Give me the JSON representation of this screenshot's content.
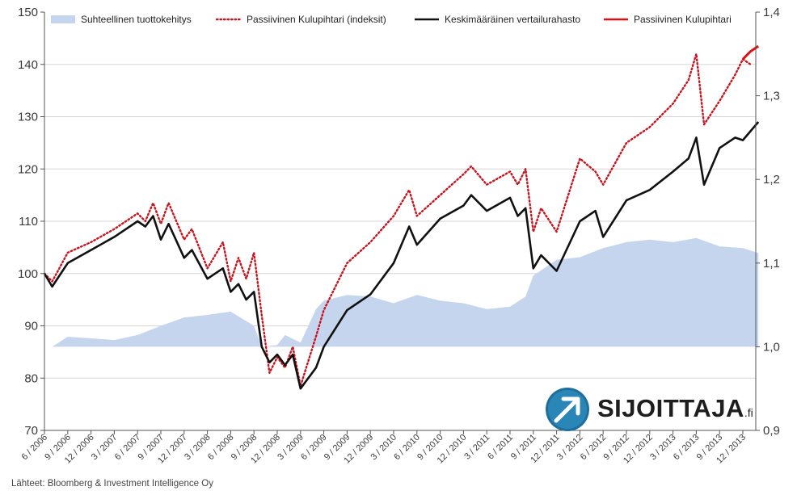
{
  "chart_data": {
    "type": "line",
    "title": "",
    "xlabel": "",
    "ylabel": "",
    "ylim": [
      70,
      150
    ],
    "y2lim": [
      0.9,
      1.4
    ],
    "y_ticks": [
      "70",
      "80",
      "90",
      "100",
      "110",
      "120",
      "130",
      "140",
      "150"
    ],
    "y2_ticks": [
      "0,9",
      "1,0",
      "1,1",
      "1,2",
      "1,3",
      "1,4"
    ],
    "x_ticks": [
      "6 / 2006",
      "9 / 2006",
      "12 / 2006",
      "3 / 2007",
      "6 / 2007",
      "9 / 2007",
      "12 / 2007",
      "3 / 2008",
      "6 / 2008",
      "9 / 2008",
      "12 / 2008",
      "3 / 2009",
      "6 / 2009",
      "9 / 2009",
      "12 / 2009",
      "3 / 2010",
      "6 / 2010",
      "9 / 2010",
      "12 / 2010",
      "3 / 2011",
      "6 / 2011",
      "9 / 2011",
      "12 / 2011",
      "3 / 2012",
      "6 / 2012",
      "9 / 2012",
      "12 / 2012",
      "3 / 2013",
      "6 / 2013",
      "9 / 2013",
      "12 / 2013"
    ],
    "legend_position": "top",
    "grid": true,
    "series": [
      {
        "name": "Suhteellinen tuottokehitys",
        "kind": "area",
        "axis": "right",
        "color": "#c5d5ee",
        "x": [
          "2006-06",
          "2006-07",
          "2006-09",
          "2006-12",
          "2007-03",
          "2007-06",
          "2007-09",
          "2007-12",
          "2008-03",
          "2008-06",
          "2008-09",
          "2008-10",
          "2008-12",
          "2009-01",
          "2009-03",
          "2009-05",
          "2009-06",
          "2009-09",
          "2009-12",
          "2010-03",
          "2010-06",
          "2010-09",
          "2010-12",
          "2011-03",
          "2011-06",
          "2011-08",
          "2011-09",
          "2011-12",
          "2012-03",
          "2012-06",
          "2012-09",
          "2012-12",
          "2013-03",
          "2013-06",
          "2013-09",
          "2013-12",
          "2014-02"
        ],
        "values": [
          1.0,
          1.0,
          1.012,
          1.01,
          1.008,
          1.014,
          1.025,
          1.035,
          1.038,
          1.042,
          1.025,
          1.0,
          1.002,
          1.014,
          1.005,
          1.045,
          1.055,
          1.062,
          1.06,
          1.052,
          1.062,
          1.055,
          1.052,
          1.045,
          1.048,
          1.06,
          1.085,
          1.104,
          1.107,
          1.118,
          1.125,
          1.128,
          1.125,
          1.13,
          1.12,
          1.118,
          1.112
        ]
      },
      {
        "name": "Passiivinen Kulupihtari (indeksit)",
        "kind": "dotted",
        "axis": "left",
        "color": "#c8141e",
        "x": [
          "2006-06",
          "2006-07",
          "2006-09",
          "2006-12",
          "2007-03",
          "2007-06",
          "2007-07",
          "2007-08",
          "2007-09",
          "2007-10",
          "2007-12",
          "2008-01",
          "2008-03",
          "2008-05",
          "2008-06",
          "2008-07",
          "2008-08",
          "2008-09",
          "2008-10",
          "2008-11",
          "2008-12",
          "2009-01",
          "2009-02",
          "2009-03",
          "2009-05",
          "2009-06",
          "2009-09",
          "2009-12",
          "2010-03",
          "2010-05",
          "2010-06",
          "2010-09",
          "2010-12",
          "2011-01",
          "2011-03",
          "2011-06",
          "2011-07",
          "2011-08",
          "2011-09",
          "2011-10",
          "2011-12",
          "2012-03",
          "2012-05",
          "2012-06",
          "2012-09",
          "2012-12",
          "2013-03",
          "2013-05",
          "2013-06",
          "2013-07",
          "2013-09",
          "2013-11",
          "2013-12",
          "2014-01"
        ],
        "values": [
          100,
          98.5,
          104,
          106,
          108.5,
          111.5,
          110,
          113.5,
          109.5,
          113.5,
          106.5,
          108.5,
          101,
          106,
          98.5,
          103,
          99,
          104,
          92,
          81,
          84,
          82,
          86,
          78.5,
          88,
          93,
          102,
          106,
          111,
          116,
          111,
          115,
          119,
          120.5,
          117,
          119.5,
          117,
          120,
          108,
          112.5,
          108,
          122,
          119.5,
          117,
          125,
          128,
          132.5,
          137,
          142,
          128.5,
          133,
          138,
          141,
          140
        ]
      },
      {
        "name": "Keskimääräinen vertailurahasto",
        "kind": "solid",
        "axis": "left",
        "color": "#111111",
        "x": [
          "2006-06",
          "2006-07",
          "2006-09",
          "2006-12",
          "2007-03",
          "2007-06",
          "2007-07",
          "2007-08",
          "2007-09",
          "2007-10",
          "2007-12",
          "2008-01",
          "2008-03",
          "2008-05",
          "2008-06",
          "2008-07",
          "2008-08",
          "2008-09",
          "2008-10",
          "2008-11",
          "2008-12",
          "2009-01",
          "2009-02",
          "2009-03",
          "2009-05",
          "2009-06",
          "2009-09",
          "2009-12",
          "2010-03",
          "2010-05",
          "2010-06",
          "2010-09",
          "2010-12",
          "2011-01",
          "2011-03",
          "2011-06",
          "2011-07",
          "2011-08",
          "2011-09",
          "2011-10",
          "2011-12",
          "2012-03",
          "2012-05",
          "2012-06",
          "2012-09",
          "2012-12",
          "2013-03",
          "2013-05",
          "2013-06",
          "2013-07",
          "2013-09",
          "2013-11",
          "2013-12",
          "2014-02"
        ],
        "values": [
          100,
          97.5,
          102,
          104.5,
          107,
          110,
          109,
          111,
          106.5,
          109.5,
          103,
          104.5,
          99,
          101,
          96.5,
          98,
          95,
          96.5,
          86,
          83,
          84.5,
          82.5,
          84.5,
          78,
          82,
          86,
          93,
          96,
          102,
          109,
          105.5,
          110.5,
          113,
          115,
          112,
          114.5,
          111,
          112.5,
          101,
          103.5,
          100.5,
          110,
          112,
          107,
          114,
          116,
          119.5,
          122,
          126,
          117,
          124,
          126,
          125.5,
          129
        ]
      },
      {
        "name": "Passiivinen Kulupihtari",
        "kind": "solid",
        "axis": "left",
        "color": "#e01010",
        "x": [
          "2013-12",
          "2014-01",
          "2014-02"
        ],
        "values": [
          141,
          142.5,
          143.5
        ]
      }
    ]
  },
  "source_text": "Lähteet: Bloomberg & Investment Intelligence Oy",
  "logo": {
    "text": "SIJOITTAJA",
    "suffix": ".fi",
    "icon": "arrow-up-right-icon",
    "color": "#1f6f9c"
  }
}
